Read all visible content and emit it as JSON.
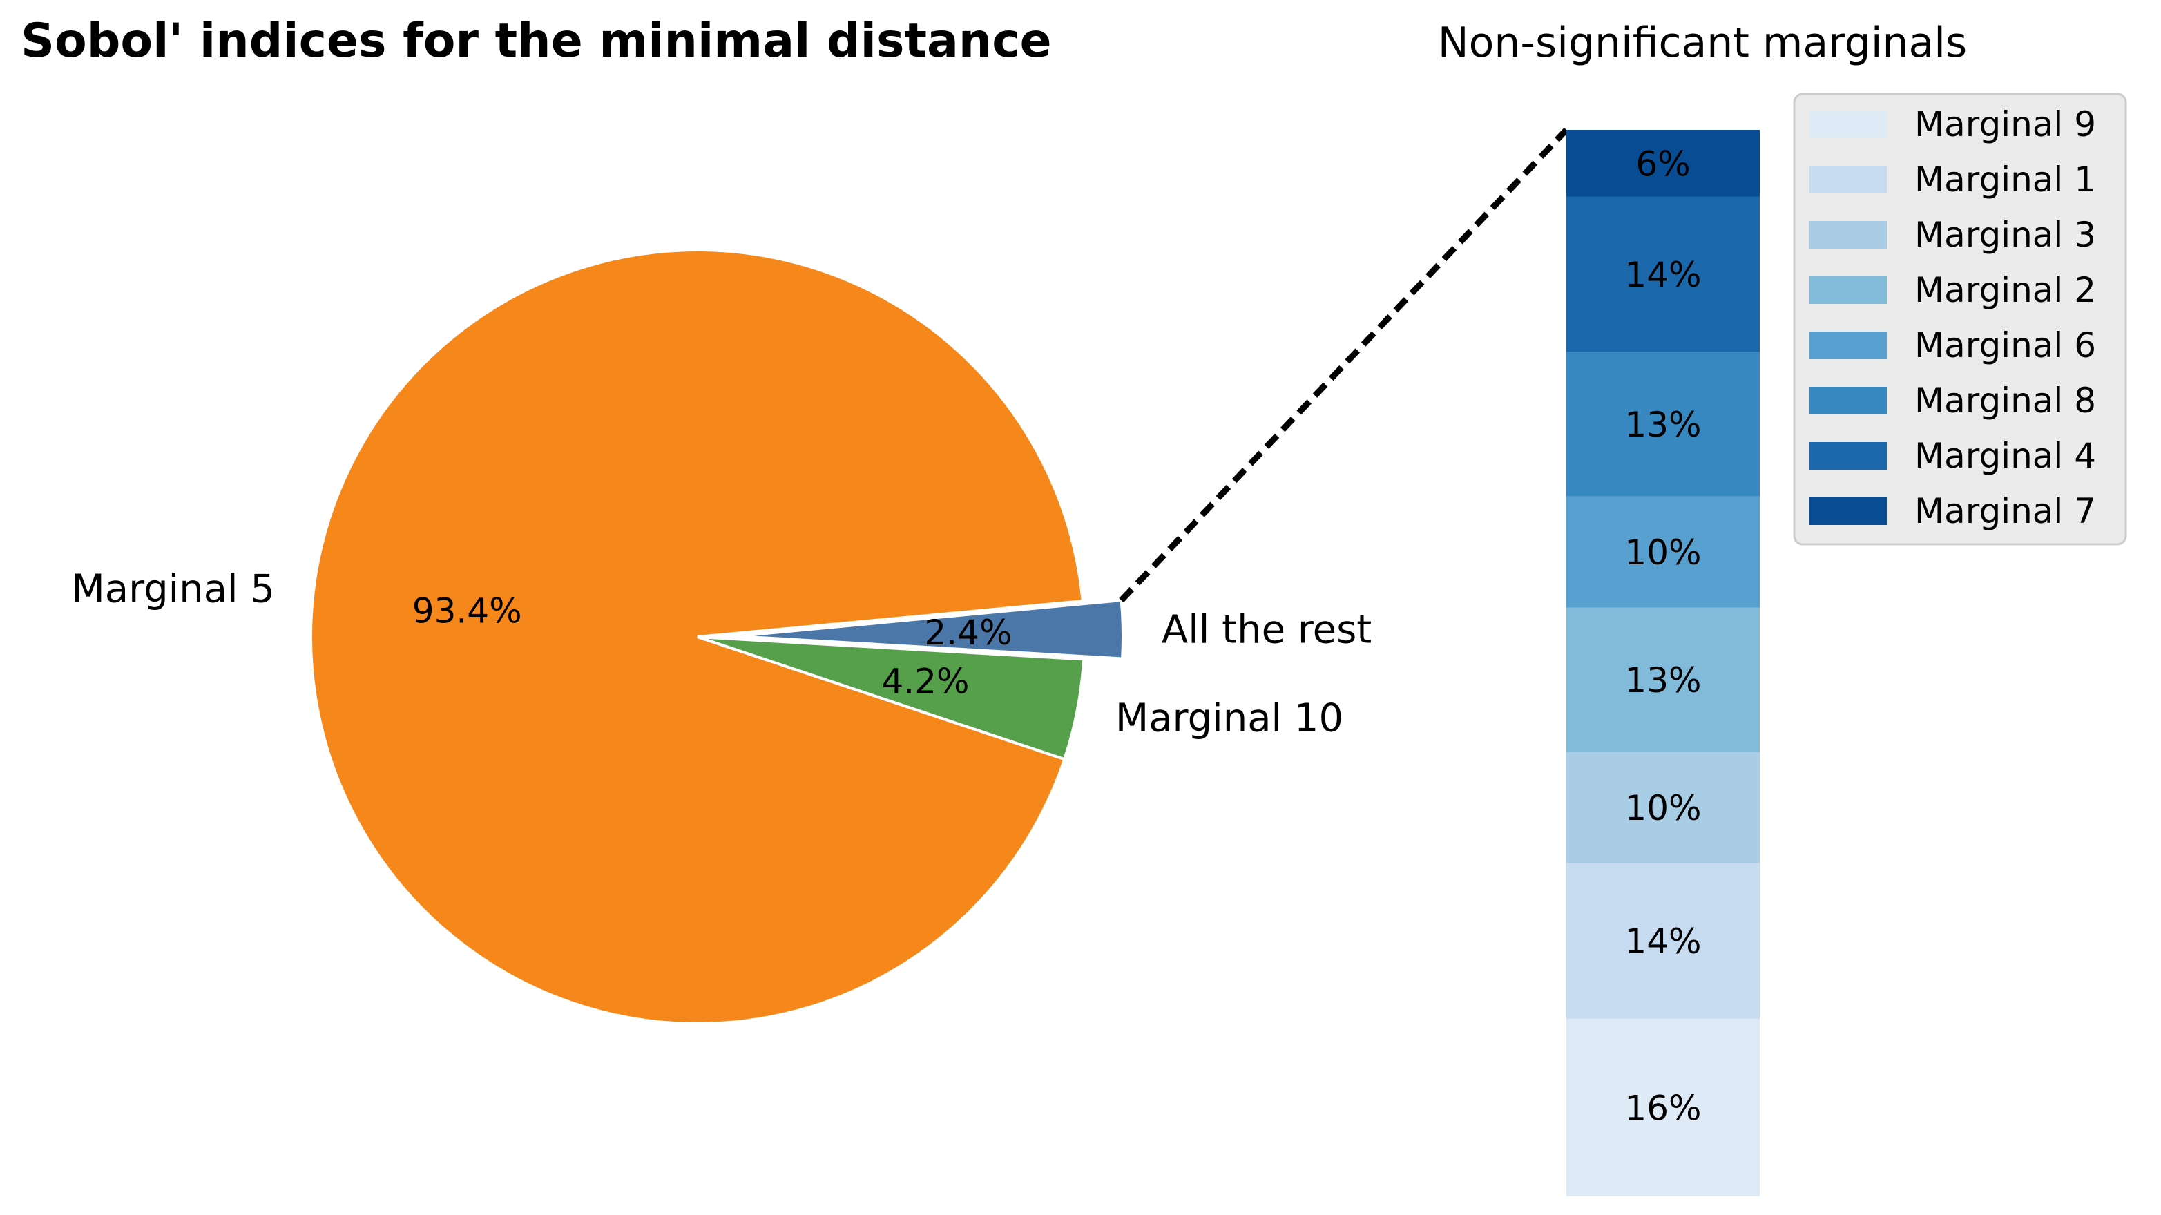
{
  "chart_data": [
    {
      "type": "pie",
      "title": "Sobol' indices for the minimal distance",
      "slices": [
        {
          "label": "Marginal 5",
          "value": 93.4,
          "pct_label": "93.4%",
          "color": "#f5871b"
        },
        {
          "label": "Marginal 10",
          "value": 4.2,
          "pct_label": "4.2%",
          "color": "#56a04b"
        },
        {
          "label": "All the rest",
          "value": 2.4,
          "pct_label": "2.4%",
          "color": "#4a76a8",
          "exploded": true
        }
      ]
    },
    {
      "type": "bar",
      "stacked": true,
      "title": "Non-significant marginals",
      "series": [
        {
          "name": "Marginal 9",
          "value": 16,
          "pct_label": "16%",
          "color": "#deebf7"
        },
        {
          "name": "Marginal 1",
          "value": 14,
          "pct_label": "14%",
          "color": "#c6dbef"
        },
        {
          "name": "Marginal 3",
          "value": 10,
          "pct_label": "10%",
          "color": "#a9cde4"
        },
        {
          "name": "Marginal 2",
          "value": 13,
          "pct_label": "13%",
          "color": "#82bada"
        },
        {
          "name": "Marginal 6",
          "value": 10,
          "pct_label": "10%",
          "color": "#58a0cf"
        },
        {
          "name": "Marginal 8",
          "value": 13,
          "pct_label": "13%",
          "color": "#3787c0"
        },
        {
          "name": "Marginal 4",
          "value": 14,
          "pct_label": "14%",
          "color": "#1b68ad"
        },
        {
          "name": "Marginal 7",
          "value": 6,
          "pct_label": "6%",
          "color": "#084d93"
        }
      ],
      "legend": "right"
    }
  ]
}
